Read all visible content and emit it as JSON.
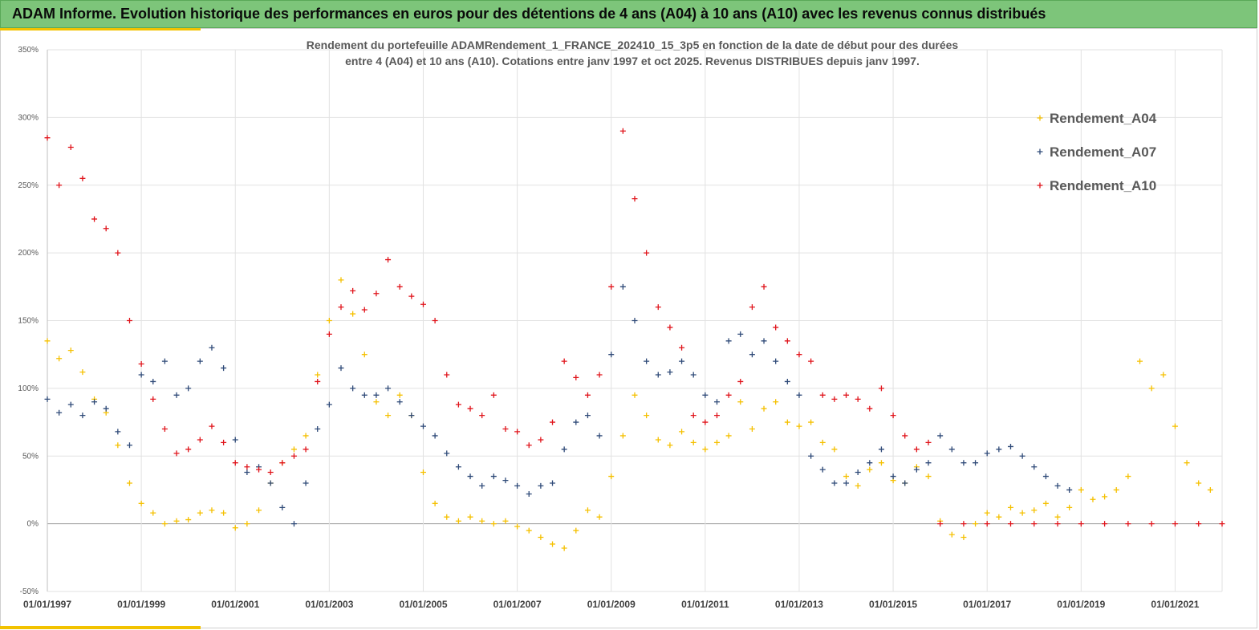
{
  "banner": "ADAM Informe. Evolution historique des performances en euros pour des détentions de 4 ans (A04) à 10 ans (A10) avec les revenus connus distribués",
  "chart_data": {
    "type": "scatter",
    "title_line1": "Rendement du portefeuille ADAMRendement_1_FRANCE_202410_15_3p5  en fonction de la date de début pour des durées",
    "title_line2": "entre 4 (A04) et 10 ans (A10). Cotations entre janv 1997 et oct 2025. Revenus DISTRIBUES depuis janv 1997.",
    "xlabel": "",
    "ylabel": "",
    "x_range": [
      "1997-01-01",
      "2022-01-01"
    ],
    "ylim": [
      -50,
      350
    ],
    "yticks": [
      -50,
      0,
      50,
      100,
      150,
      200,
      250,
      300,
      350
    ],
    "ytick_labels": [
      "-50%",
      "0%",
      "50%",
      "100%",
      "150%",
      "200%",
      "250%",
      "300%",
      "350%"
    ],
    "xtick_labels": [
      "01/01/1997",
      "01/01/1999",
      "01/01/2001",
      "01/01/2003",
      "01/01/2005",
      "01/01/2007",
      "01/01/2009",
      "01/01/2011",
      "01/01/2013",
      "01/01/2015",
      "01/01/2017",
      "01/01/2019",
      "01/01/2021"
    ],
    "grid": "vertical and horizontal major gridlines",
    "legend_position": "right",
    "marker": "+",
    "series": [
      {
        "name": "Rendement_A04",
        "color": "#f5c000",
        "points": [
          [
            "1997-01",
            135
          ],
          [
            "1997-04",
            122
          ],
          [
            "1997-07",
            128
          ],
          [
            "1997-10",
            112
          ],
          [
            "1998-01",
            92
          ],
          [
            "1998-04",
            82
          ],
          [
            "1998-07",
            58
          ],
          [
            "1998-10",
            30
          ],
          [
            "1999-01",
            15
          ],
          [
            "1999-04",
            8
          ],
          [
            "1999-07",
            0
          ],
          [
            "1999-10",
            2
          ],
          [
            "2000-01",
            3
          ],
          [
            "2000-04",
            8
          ],
          [
            "2000-07",
            10
          ],
          [
            "2000-10",
            8
          ],
          [
            "2001-01",
            -3
          ],
          [
            "2001-04",
            0
          ],
          [
            "2001-07",
            10
          ],
          [
            "2001-10",
            30
          ],
          [
            "2002-01",
            45
          ],
          [
            "2002-04",
            55
          ],
          [
            "2002-07",
            65
          ],
          [
            "2002-10",
            110
          ],
          [
            "2003-01",
            150
          ],
          [
            "2003-04",
            180
          ],
          [
            "2003-07",
            155
          ],
          [
            "2003-10",
            125
          ],
          [
            "2004-01",
            90
          ],
          [
            "2004-04",
            80
          ],
          [
            "2004-07",
            95
          ],
          [
            "2004-10",
            80
          ],
          [
            "2005-01",
            38
          ],
          [
            "2005-04",
            15
          ],
          [
            "2005-07",
            5
          ],
          [
            "2005-10",
            2
          ],
          [
            "2006-01",
            5
          ],
          [
            "2006-04",
            2
          ],
          [
            "2006-07",
            0
          ],
          [
            "2006-10",
            2
          ],
          [
            "2007-01",
            -2
          ],
          [
            "2007-04",
            -5
          ],
          [
            "2007-07",
            -10
          ],
          [
            "2007-10",
            -15
          ],
          [
            "2008-01",
            -18
          ],
          [
            "2008-04",
            -5
          ],
          [
            "2008-07",
            10
          ],
          [
            "2008-10",
            5
          ],
          [
            "2009-01",
            35
          ],
          [
            "2009-04",
            65
          ],
          [
            "2009-07",
            95
          ],
          [
            "2009-10",
            80
          ],
          [
            "2010-01",
            62
          ],
          [
            "2010-04",
            58
          ],
          [
            "2010-07",
            68
          ],
          [
            "2010-10",
            60
          ],
          [
            "2011-01",
            55
          ],
          [
            "2011-04",
            60
          ],
          [
            "2011-07",
            65
          ],
          [
            "2011-10",
            90
          ],
          [
            "2012-01",
            70
          ],
          [
            "2012-04",
            85
          ],
          [
            "2012-07",
            90
          ],
          [
            "2012-10",
            75
          ],
          [
            "2013-01",
            72
          ],
          [
            "2013-04",
            75
          ],
          [
            "2013-07",
            60
          ],
          [
            "2013-10",
            55
          ],
          [
            "2014-01",
            35
          ],
          [
            "2014-04",
            28
          ],
          [
            "2014-07",
            40
          ],
          [
            "2014-10",
            45
          ],
          [
            "2015-01",
            32
          ],
          [
            "2015-04",
            30
          ],
          [
            "2015-07",
            42
          ],
          [
            "2015-10",
            35
          ],
          [
            "2016-01",
            2
          ],
          [
            "2016-04",
            -8
          ],
          [
            "2016-07",
            -10
          ],
          [
            "2016-10",
            0
          ],
          [
            "2017-01",
            8
          ],
          [
            "2017-04",
            5
          ],
          [
            "2017-07",
            12
          ],
          [
            "2017-10",
            8
          ],
          [
            "2018-01",
            10
          ],
          [
            "2018-04",
            15
          ],
          [
            "2018-07",
            5
          ],
          [
            "2018-10",
            12
          ],
          [
            "2019-01",
            25
          ],
          [
            "2019-04",
            18
          ],
          [
            "2019-07",
            20
          ],
          [
            "2019-10",
            25
          ],
          [
            "2020-01",
            35
          ],
          [
            "2020-04",
            120
          ],
          [
            "2020-07",
            100
          ],
          [
            "2020-10",
            110
          ],
          [
            "2021-01",
            72
          ],
          [
            "2021-04",
            45
          ],
          [
            "2021-07",
            30
          ],
          [
            "2021-10",
            25
          ]
        ]
      },
      {
        "name": "Rendement_A07",
        "color": "#2f4a78",
        "points": [
          [
            "1997-01",
            92
          ],
          [
            "1997-04",
            82
          ],
          [
            "1997-07",
            88
          ],
          [
            "1997-10",
            80
          ],
          [
            "1998-01",
            90
          ],
          [
            "1998-04",
            85
          ],
          [
            "1998-07",
            68
          ],
          [
            "1998-10",
            58
          ],
          [
            "1999-01",
            110
          ],
          [
            "1999-04",
            105
          ],
          [
            "1999-07",
            120
          ],
          [
            "1999-10",
            95
          ],
          [
            "2000-01",
            100
          ],
          [
            "2000-04",
            120
          ],
          [
            "2000-07",
            130
          ],
          [
            "2000-10",
            115
          ],
          [
            "2001-01",
            62
          ],
          [
            "2001-04",
            38
          ],
          [
            "2001-07",
            42
          ],
          [
            "2001-10",
            30
          ],
          [
            "2002-01",
            12
          ],
          [
            "2002-04",
            0
          ],
          [
            "2002-07",
            30
          ],
          [
            "2002-10",
            70
          ],
          [
            "2003-01",
            88
          ],
          [
            "2003-04",
            115
          ],
          [
            "2003-07",
            100
          ],
          [
            "2003-10",
            95
          ],
          [
            "2004-01",
            95
          ],
          [
            "2004-04",
            100
          ],
          [
            "2004-07",
            90
          ],
          [
            "2004-10",
            80
          ],
          [
            "2005-01",
            72
          ],
          [
            "2005-04",
            65
          ],
          [
            "2005-07",
            52
          ],
          [
            "2005-10",
            42
          ],
          [
            "2006-01",
            35
          ],
          [
            "2006-04",
            28
          ],
          [
            "2006-07",
            35
          ],
          [
            "2006-10",
            32
          ],
          [
            "2007-01",
            28
          ],
          [
            "2007-04",
            22
          ],
          [
            "2007-07",
            28
          ],
          [
            "2007-10",
            30
          ],
          [
            "2008-01",
            55
          ],
          [
            "2008-04",
            75
          ],
          [
            "2008-07",
            80
          ],
          [
            "2008-10",
            65
          ],
          [
            "2009-01",
            125
          ],
          [
            "2009-04",
            175
          ],
          [
            "2009-07",
            150
          ],
          [
            "2009-10",
            120
          ],
          [
            "2010-01",
            110
          ],
          [
            "2010-04",
            112
          ],
          [
            "2010-07",
            120
          ],
          [
            "2010-10",
            110
          ],
          [
            "2011-01",
            95
          ],
          [
            "2011-04",
            90
          ],
          [
            "2011-07",
            135
          ],
          [
            "2011-10",
            140
          ],
          [
            "2012-01",
            125
          ],
          [
            "2012-04",
            135
          ],
          [
            "2012-07",
            120
          ],
          [
            "2012-10",
            105
          ],
          [
            "2013-01",
            95
          ],
          [
            "2013-04",
            50
          ],
          [
            "2013-07",
            40
          ],
          [
            "2013-10",
            30
          ],
          [
            "2014-01",
            30
          ],
          [
            "2014-04",
            38
          ],
          [
            "2014-07",
            45
          ],
          [
            "2014-10",
            55
          ],
          [
            "2015-01",
            35
          ],
          [
            "2015-04",
            30
          ],
          [
            "2015-07",
            40
          ],
          [
            "2015-10",
            45
          ],
          [
            "2016-01",
            65
          ],
          [
            "2016-04",
            55
          ],
          [
            "2016-07",
            45
          ],
          [
            "2016-10",
            45
          ],
          [
            "2017-01",
            52
          ],
          [
            "2017-04",
            55
          ],
          [
            "2017-07",
            57
          ],
          [
            "2017-10",
            50
          ],
          [
            "2018-01",
            42
          ],
          [
            "2018-04",
            35
          ],
          [
            "2018-07",
            28
          ],
          [
            "2018-10",
            25
          ]
        ]
      },
      {
        "name": "Rendement_A10",
        "color": "#e0141b",
        "points": [
          [
            "1997-01",
            285
          ],
          [
            "1997-04",
            250
          ],
          [
            "1997-07",
            278
          ],
          [
            "1997-10",
            255
          ],
          [
            "1998-01",
            225
          ],
          [
            "1998-04",
            218
          ],
          [
            "1998-07",
            200
          ],
          [
            "1998-10",
            150
          ],
          [
            "1999-01",
            118
          ],
          [
            "1999-04",
            92
          ],
          [
            "1999-07",
            70
          ],
          [
            "1999-10",
            52
          ],
          [
            "2000-01",
            55
          ],
          [
            "2000-04",
            62
          ],
          [
            "2000-07",
            72
          ],
          [
            "2000-10",
            60
          ],
          [
            "2001-01",
            45
          ],
          [
            "2001-04",
            42
          ],
          [
            "2001-07",
            40
          ],
          [
            "2001-10",
            38
          ],
          [
            "2002-01",
            45
          ],
          [
            "2002-04",
            50
          ],
          [
            "2002-07",
            55
          ],
          [
            "2002-10",
            105
          ],
          [
            "2003-01",
            140
          ],
          [
            "2003-04",
            160
          ],
          [
            "2003-07",
            172
          ],
          [
            "2003-10",
            158
          ],
          [
            "2004-01",
            170
          ],
          [
            "2004-04",
            195
          ],
          [
            "2004-07",
            175
          ],
          [
            "2004-10",
            168
          ],
          [
            "2005-01",
            162
          ],
          [
            "2005-04",
            150
          ],
          [
            "2005-07",
            110
          ],
          [
            "2005-10",
            88
          ],
          [
            "2006-01",
            85
          ],
          [
            "2006-04",
            80
          ],
          [
            "2006-07",
            95
          ],
          [
            "2006-10",
            70
          ],
          [
            "2007-01",
            68
          ],
          [
            "2007-04",
            58
          ],
          [
            "2007-07",
            62
          ],
          [
            "2007-10",
            75
          ],
          [
            "2008-01",
            120
          ],
          [
            "2008-04",
            108
          ],
          [
            "2008-07",
            95
          ],
          [
            "2008-10",
            110
          ],
          [
            "2009-01",
            175
          ],
          [
            "2009-04",
            290
          ],
          [
            "2009-07",
            240
          ],
          [
            "2009-10",
            200
          ],
          [
            "2010-01",
            160
          ],
          [
            "2010-04",
            145
          ],
          [
            "2010-07",
            130
          ],
          [
            "2010-10",
            80
          ],
          [
            "2011-01",
            75
          ],
          [
            "2011-04",
            80
          ],
          [
            "2011-07",
            95
          ],
          [
            "2011-10",
            105
          ],
          [
            "2012-01",
            160
          ],
          [
            "2012-04",
            175
          ],
          [
            "2012-07",
            145
          ],
          [
            "2012-10",
            135
          ],
          [
            "2013-01",
            125
          ],
          [
            "2013-04",
            120
          ],
          [
            "2013-07",
            95
          ],
          [
            "2013-10",
            92
          ],
          [
            "2014-01",
            95
          ],
          [
            "2014-04",
            92
          ],
          [
            "2014-07",
            85
          ],
          [
            "2014-10",
            100
          ],
          [
            "2015-01",
            80
          ],
          [
            "2015-04",
            65
          ],
          [
            "2015-07",
            55
          ],
          [
            "2015-10",
            60
          ],
          [
            "2016-01",
            0
          ],
          [
            "2016-07",
            0
          ],
          [
            "2017-01",
            0
          ],
          [
            "2017-07",
            0
          ],
          [
            "2018-01",
            0
          ],
          [
            "2018-07",
            0
          ],
          [
            "2019-01",
            0
          ],
          [
            "2019-07",
            0
          ],
          [
            "2020-01",
            0
          ],
          [
            "2020-07",
            0
          ],
          [
            "2021-01",
            0
          ],
          [
            "2021-07",
            0
          ],
          [
            "2022-01",
            0
          ]
        ]
      }
    ]
  }
}
